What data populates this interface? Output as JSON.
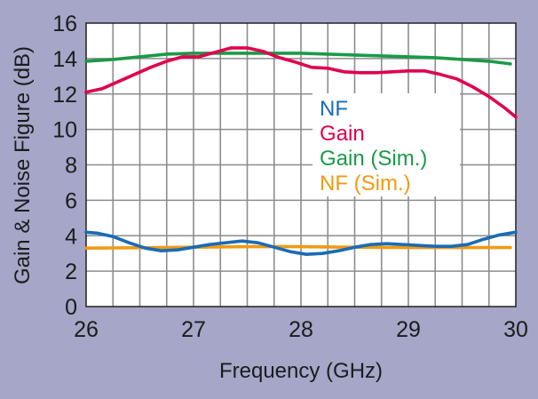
{
  "chart_data": {
    "type": "line",
    "xlabel": "Frequency (GHz)",
    "ylabel": "Gain & Noise Figure (dB)",
    "xlim": [
      26,
      30
    ],
    "ylim": [
      0,
      16
    ],
    "x_ticks": [
      26,
      27,
      28,
      29,
      30
    ],
    "y_ticks": [
      0,
      2,
      4,
      6,
      8,
      10,
      12,
      14,
      16
    ],
    "x_grid_step": 0.25,
    "y_grid_step": 2,
    "grid": true,
    "legend_position": "center-right",
    "background_color": "#a5a6c8",
    "plot_background": "#ffffff",
    "series": [
      {
        "name": "NF",
        "color": "#1a6bb5",
        "x": [
          26.0,
          26.1,
          26.25,
          26.4,
          26.55,
          26.7,
          26.85,
          27.0,
          27.15,
          27.3,
          27.45,
          27.6,
          27.75,
          27.9,
          28.05,
          28.2,
          28.35,
          28.5,
          28.65,
          28.8,
          28.95,
          29.1,
          29.25,
          29.4,
          29.55,
          29.7,
          29.85,
          30.0
        ],
        "values": [
          4.2,
          4.15,
          3.95,
          3.6,
          3.3,
          3.15,
          3.2,
          3.35,
          3.5,
          3.6,
          3.7,
          3.6,
          3.35,
          3.1,
          2.95,
          3.0,
          3.15,
          3.35,
          3.5,
          3.55,
          3.5,
          3.45,
          3.4,
          3.4,
          3.5,
          3.8,
          4.05,
          4.2
        ]
      },
      {
        "name": "Gain",
        "color": "#e0004d",
        "x": [
          26.0,
          26.15,
          26.3,
          26.45,
          26.6,
          26.75,
          26.9,
          27.05,
          27.2,
          27.35,
          27.5,
          27.65,
          27.8,
          27.95,
          28.1,
          28.25,
          28.4,
          28.55,
          28.7,
          28.85,
          29.0,
          29.15,
          29.3,
          29.45,
          29.6,
          29.75,
          29.9,
          30.0
        ],
        "values": [
          12.1,
          12.3,
          12.7,
          13.1,
          13.5,
          13.85,
          14.1,
          14.1,
          14.35,
          14.6,
          14.6,
          14.4,
          14.05,
          13.8,
          13.5,
          13.45,
          13.25,
          13.2,
          13.2,
          13.25,
          13.3,
          13.3,
          13.1,
          12.85,
          12.4,
          11.85,
          11.2,
          10.7
        ]
      },
      {
        "name": "Gain (Sim.)",
        "color": "#1a9a48",
        "x": [
          26.0,
          26.25,
          26.5,
          26.75,
          27.0,
          27.25,
          27.5,
          27.75,
          28.0,
          28.25,
          28.5,
          28.75,
          29.0,
          29.25,
          29.5,
          29.75,
          29.95
        ],
        "values": [
          13.85,
          13.95,
          14.1,
          14.25,
          14.3,
          14.3,
          14.3,
          14.3,
          14.3,
          14.25,
          14.2,
          14.15,
          14.1,
          14.05,
          13.95,
          13.85,
          13.7
        ]
      },
      {
        "name": "NF (Sim.)",
        "color": "#f09a14",
        "x": [
          26.0,
          26.5,
          27.0,
          27.5,
          28.0,
          28.5,
          29.0,
          29.5,
          29.95
        ],
        "values": [
          3.3,
          3.32,
          3.35,
          3.38,
          3.38,
          3.35,
          3.33,
          3.33,
          3.33
        ]
      }
    ]
  }
}
